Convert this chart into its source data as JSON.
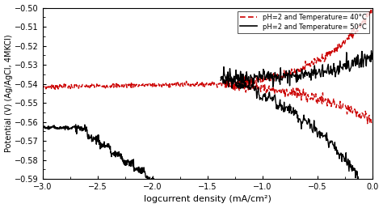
{
  "title": "",
  "xlabel": "logcurrent density (mA/cm²)",
  "ylabel": "Potential (V) (Ag/AgCl, 4MKCl)",
  "xlim": [
    -3.0,
    0.0
  ],
  "ylim": [
    -0.59,
    -0.5
  ],
  "xticks": [
    -3.0,
    -2.5,
    -2.0,
    -1.5,
    -1.0,
    -0.5,
    0.0
  ],
  "yticks": [
    -0.59,
    -0.58,
    -0.57,
    -0.56,
    -0.55,
    -0.54,
    -0.53,
    -0.52,
    -0.51,
    -0.5
  ],
  "legend_40": "pH=2 and Temperature= 40°C",
  "legend_50": "pH=2 and Temperature= 50°C",
  "color_40": "#cc0000",
  "color_50": "#000000",
  "line_style_40": "--",
  "line_style_50": "-",
  "line_width": 1.0,
  "ecorr_40": -0.54,
  "ecorr_50": -0.563,
  "icorr_40": -1.35,
  "icorr_50": -1.38
}
